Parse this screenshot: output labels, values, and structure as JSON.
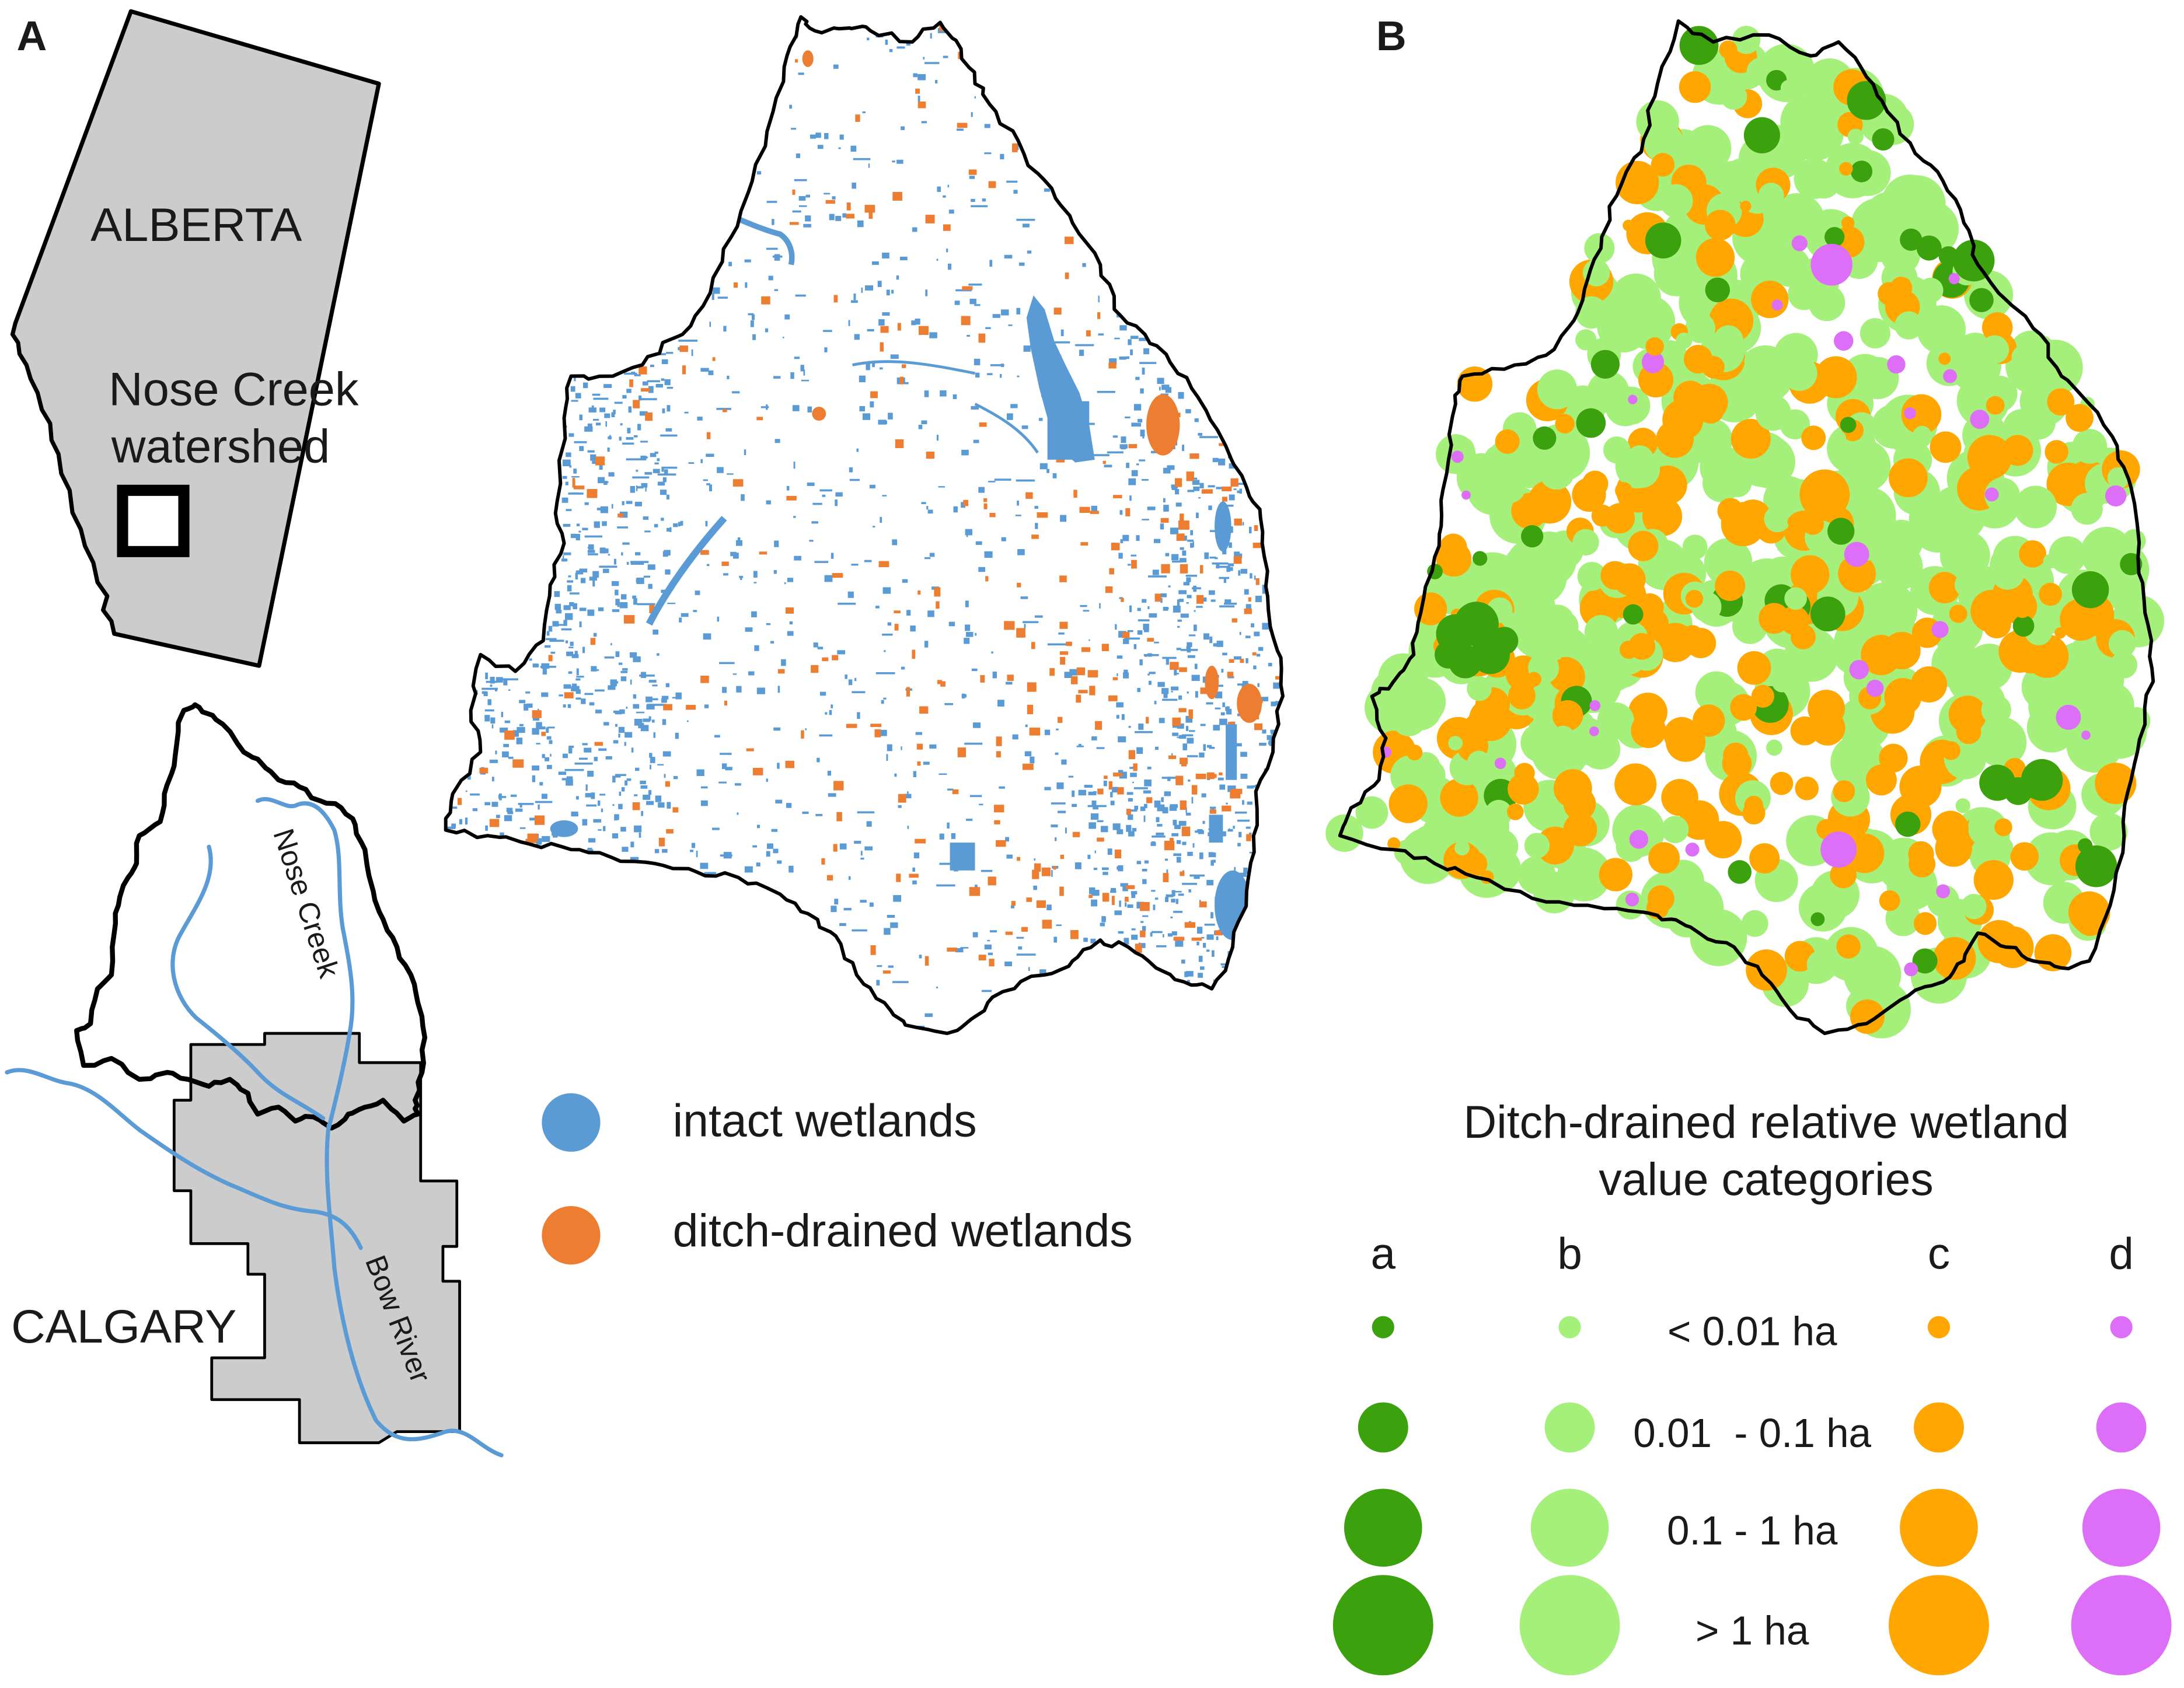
{
  "figure": {
    "panel_a_label": "A",
    "panel_b_label": "B"
  },
  "inset_map": {
    "province_label": "ALBERTA",
    "study_area_label_line1": "Nose Creek",
    "study_area_label_line2": "watershed",
    "city_label": "CALGARY",
    "creek_label": "Nose Creek",
    "river_label": "Bow River"
  },
  "legend_a": {
    "items": [
      {
        "label": "intact wetlands",
        "color": "#5b9bd5"
      },
      {
        "label": "ditch-drained wetlands",
        "color": "#ed7d31"
      }
    ]
  },
  "legend_b": {
    "title_line1": "Ditch-drained relative wetland",
    "title_line2": "value categories",
    "categories": [
      {
        "label": "a",
        "color": "#3ba10c"
      },
      {
        "label": "b",
        "color": "#a5f07b"
      },
      {
        "label": "c",
        "color": "#ffa600"
      },
      {
        "label": "d",
        "color": "#dd6ef7"
      }
    ],
    "size_classes": [
      "< 0.01 ha",
      "0.01  - 0.1 ha",
      "0.1 - 1 ha",
      "> 1 ha"
    ]
  },
  "colors": {
    "province_fill": "#cccccc",
    "city_fill": "#cccccc",
    "river": "#5b9bd5",
    "outline": "#000000"
  }
}
